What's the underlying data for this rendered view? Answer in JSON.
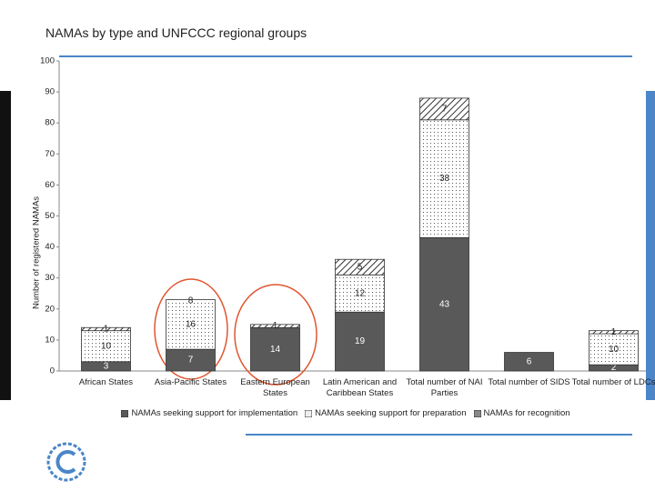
{
  "chart_data": {
    "type": "stacked_bar",
    "title": "NAMAs by type and UNFCCC regional groups",
    "y_label": "Number of registered NAMAs",
    "categories": [
      "African States",
      "Asia-Pacific States",
      "Eastern European States",
      "Latin American and Caribbean States",
      "Total number of NAI Parties",
      "Total number of SIDS",
      "Total number of LDCs"
    ],
    "series": [
      {
        "name": "NAMAs seeking support for implementation",
        "color": "#595959",
        "pattern": "solid",
        "values": [
          3,
          7,
          14,
          19,
          43,
          6,
          2
        ]
      },
      {
        "name": "NAMAs seeking support for preparation",
        "color": "#ffffff",
        "pattern": "dots",
        "values": [
          10,
          16,
          null,
          12,
          38,
          null,
          10
        ]
      },
      {
        "name": "NAMAs for recognition",
        "color": "#ffffff",
        "pattern": "hatch",
        "values": [
          1,
          null,
          1,
          5,
          7,
          null,
          1
        ]
      }
    ],
    "annotations": [
      {
        "text": "8",
        "category": 1
      }
    ],
    "ylim": [
      0,
      100
    ],
    "yticks": [
      0,
      10,
      20,
      30,
      40,
      50,
      60,
      70,
      80,
      90,
      100
    ],
    "grid": false
  }
}
